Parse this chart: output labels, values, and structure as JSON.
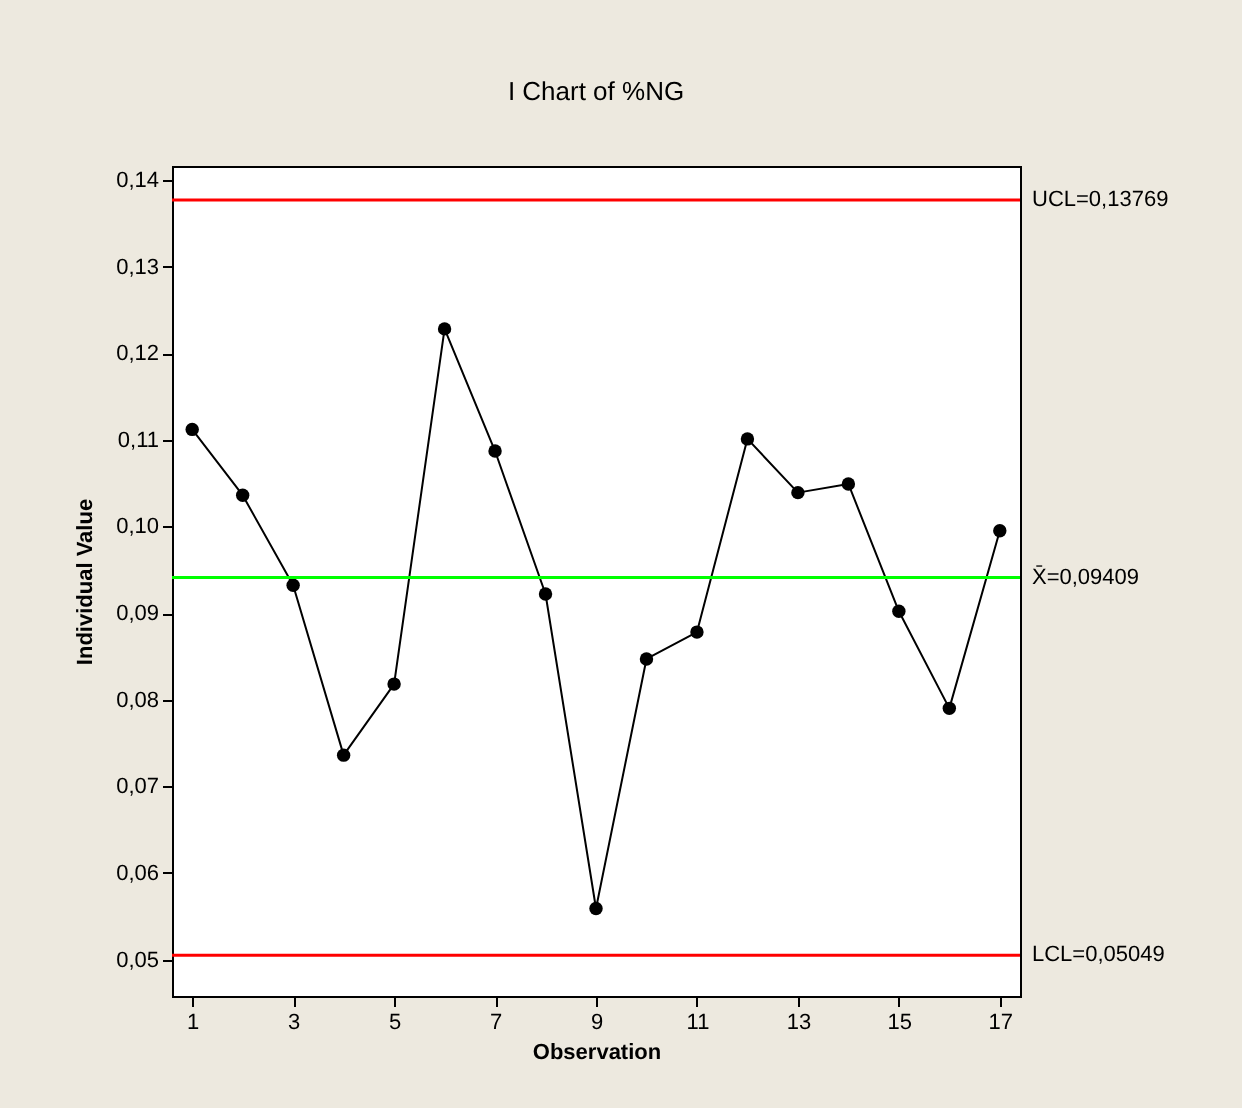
{
  "chart_data": {
    "type": "line",
    "title": "I Chart of %NG",
    "xlabel": "Observation",
    "ylabel": "Individual Value",
    "x": [
      1,
      2,
      3,
      4,
      5,
      6,
      7,
      8,
      9,
      10,
      11,
      12,
      13,
      14,
      15,
      16,
      17
    ],
    "series": [
      {
        "color": "#000000",
        "values": [
          0.1112,
          0.1036,
          0.0932,
          0.0736,
          0.0818,
          0.1228,
          0.1087,
          0.0922,
          0.0559,
          0.0847,
          0.0878,
          0.1101,
          0.1039,
          0.1049,
          0.0902,
          0.079,
          0.0995
        ]
      }
    ],
    "xlim": [
      0.6,
      17.4
    ],
    "xticks": [
      1,
      3,
      5,
      7,
      9,
      11,
      13,
      15,
      17
    ],
    "ylim": [
      0.0458,
      0.1416
    ],
    "yticks": [
      {
        "value": 0.05,
        "label": "0,05"
      },
      {
        "value": 0.06,
        "label": "0,06"
      },
      {
        "value": 0.07,
        "label": "0,07"
      },
      {
        "value": 0.08,
        "label": "0,08"
      },
      {
        "value": 0.09,
        "label": "0,09"
      },
      {
        "value": 0.1,
        "label": "0,10"
      },
      {
        "value": 0.11,
        "label": "0,11"
      },
      {
        "value": 0.12,
        "label": "0,12"
      },
      {
        "value": 0.13,
        "label": "0,13"
      },
      {
        "value": 0.14,
        "label": "0,14"
      }
    ],
    "ref_lines": [
      {
        "axis": "y",
        "value": 0.13769,
        "label": "UCL=0,13769",
        "color": "#ff0000"
      },
      {
        "axis": "y",
        "value": 0.09409,
        "label": "X̄=0,09409",
        "color": "#00ff00"
      },
      {
        "axis": "y",
        "value": 0.05049,
        "label": "LCL=0,05049",
        "color": "#ff0000"
      }
    ],
    "marker": "circle",
    "line_style": "solid",
    "grid": false
  }
}
